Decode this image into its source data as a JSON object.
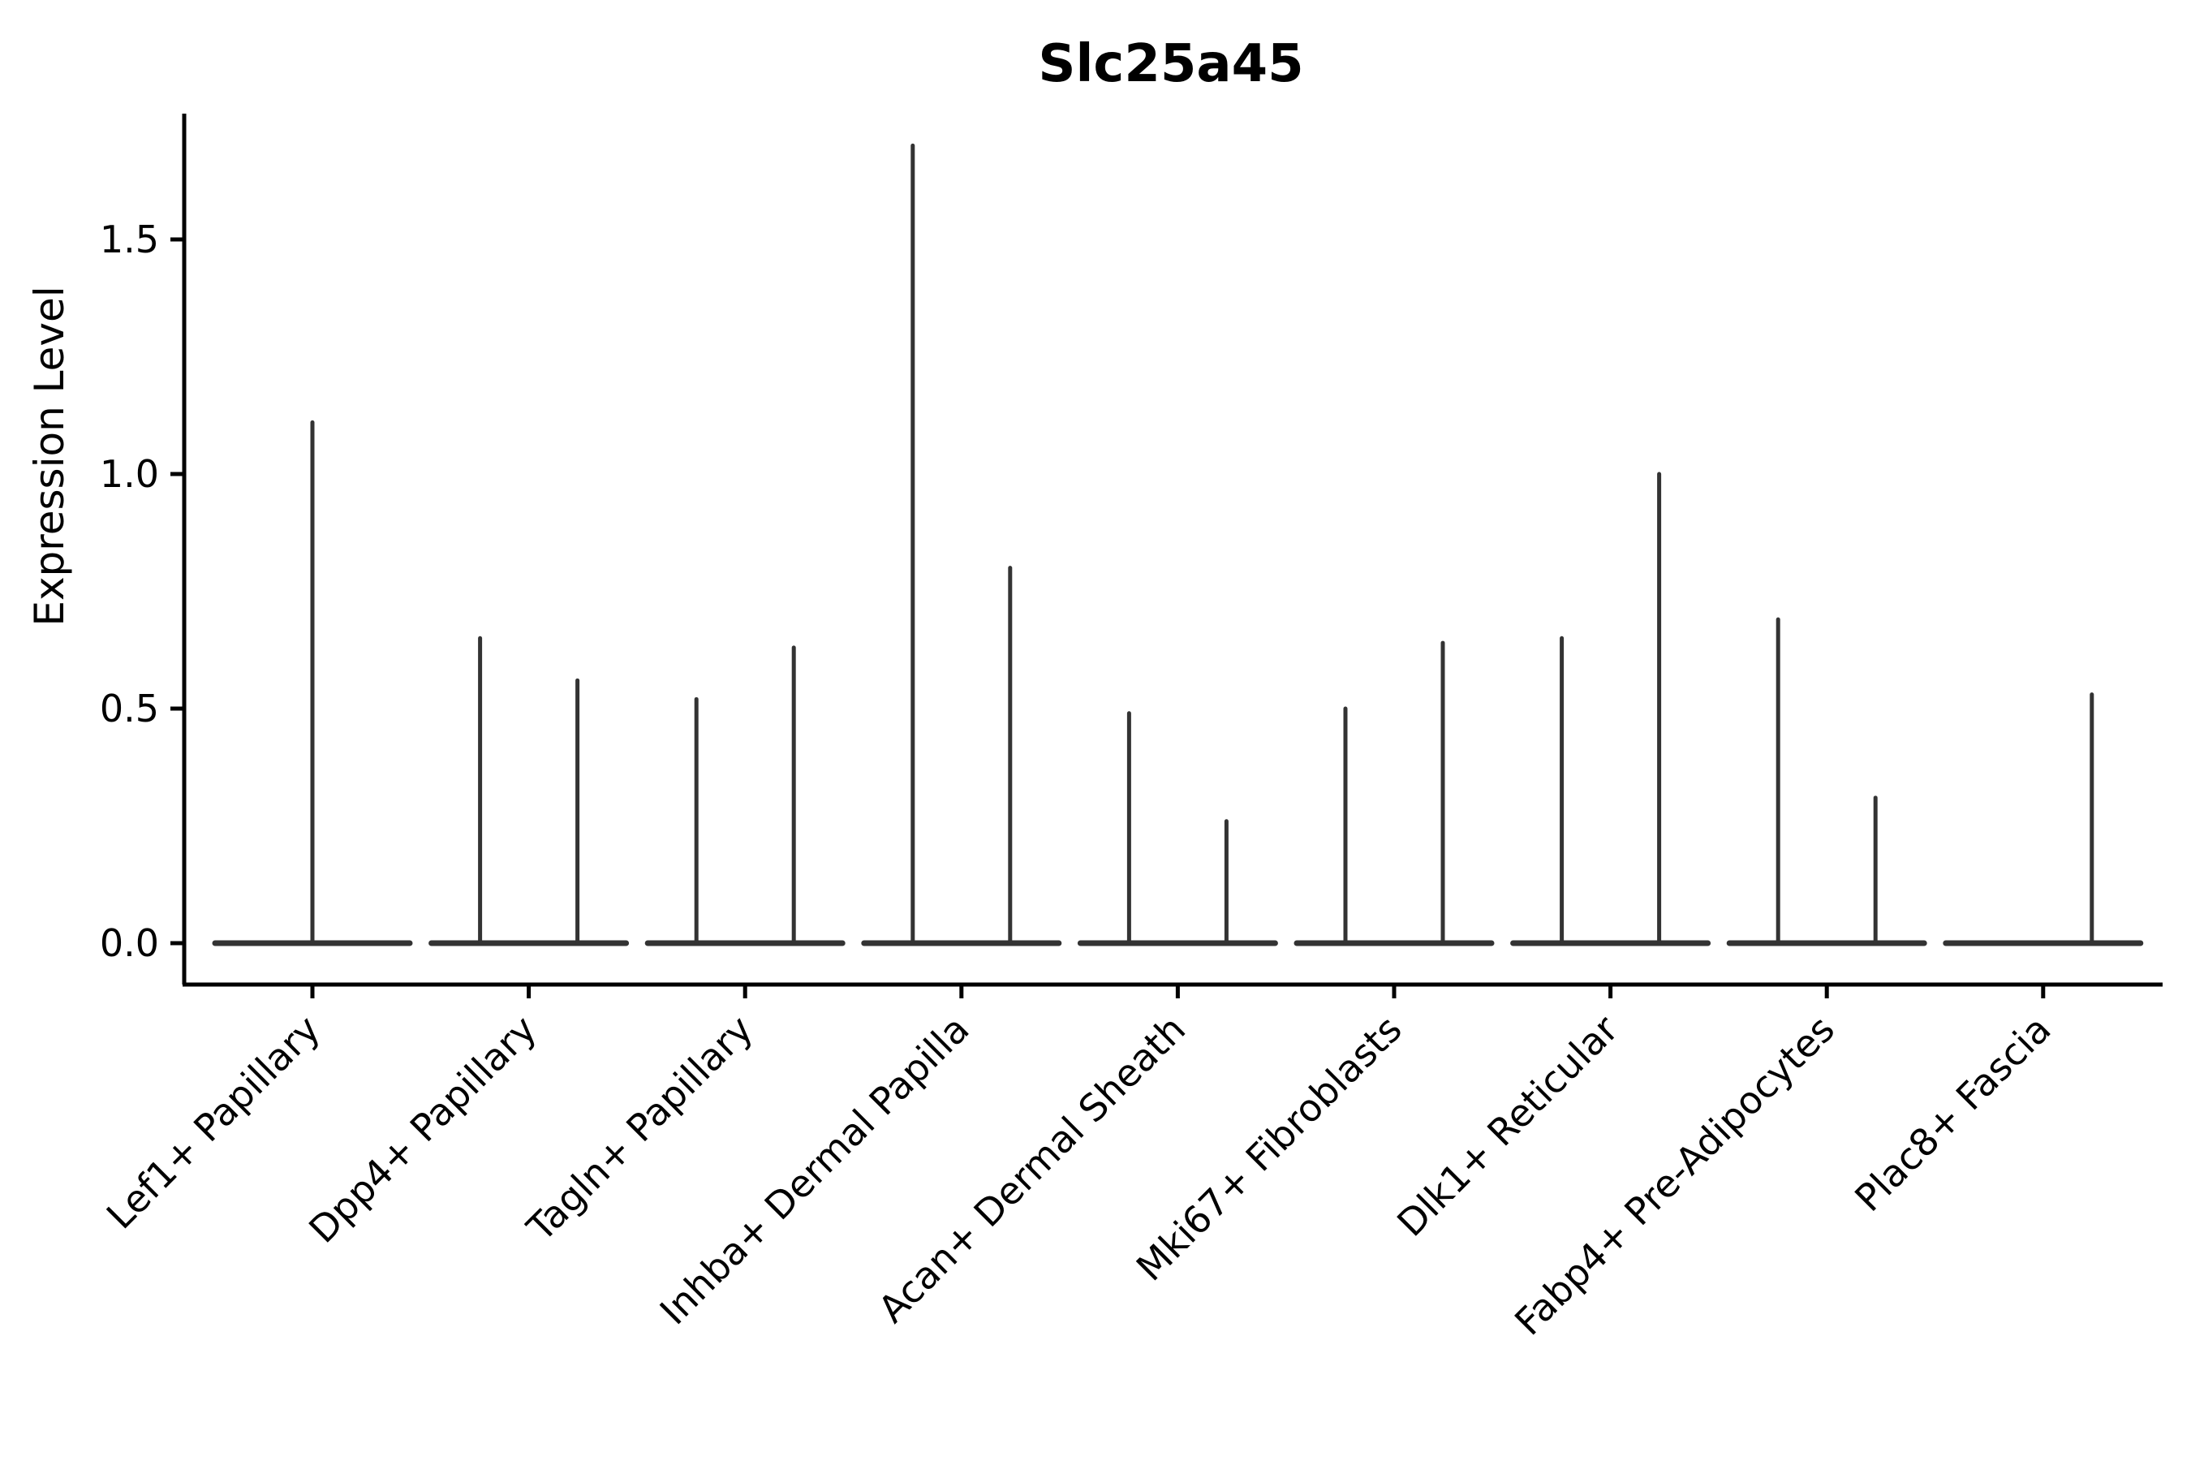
{
  "title": "Slc25a45",
  "y_axis": {
    "label": "Expression Level",
    "ticks": [
      {
        "label": "0.0",
        "value": 0.0
      },
      {
        "label": "0.5",
        "value": 0.5
      },
      {
        "label": "1.0",
        "value": 1.0
      },
      {
        "label": "1.5",
        "value": 1.5
      }
    ]
  },
  "colors": {
    "violin_line": "#333333",
    "spine": "#000000",
    "text": "#000000",
    "background": "#ffffff"
  },
  "chart_data": {
    "type": "violin",
    "title": "Slc25a45",
    "ylabel": "Expression Level",
    "xlabel": "",
    "ylim": [
      -0.09,
      1.78
    ],
    "yticks": [
      0.0,
      0.5,
      1.0,
      1.5
    ],
    "grid": false,
    "legend": "none",
    "description": "Narrow violin plots of gene expression per cluster; nearly all cells at 0 so each violin renders as a flat base line at 0 with thin vertical spikes up to the max expression. Categories 2-8 contain two side-by-side violins (left/right); category 1 a single centered violin; category 9 only the right violin has nonzero max.",
    "baseline_value": 0.0,
    "categories": [
      {
        "label": "Lef1+ Papillary",
        "violins": [
          {
            "position": "center",
            "max": 1.11
          }
        ]
      },
      {
        "label": "Dpp4+ Papillary",
        "violins": [
          {
            "position": "left",
            "max": 0.65
          },
          {
            "position": "right",
            "max": 0.56
          }
        ]
      },
      {
        "label": "Tagln+ Papillary",
        "violins": [
          {
            "position": "left",
            "max": 0.52
          },
          {
            "position": "right",
            "max": 0.63
          }
        ]
      },
      {
        "label": "Inhba+ Dermal Papilla",
        "violins": [
          {
            "position": "left",
            "max": 1.7
          },
          {
            "position": "right",
            "max": 0.8
          }
        ]
      },
      {
        "label": "Acan+ Dermal Sheath",
        "violins": [
          {
            "position": "left",
            "max": 0.49
          },
          {
            "position": "right",
            "max": 0.26
          }
        ]
      },
      {
        "label": "Mki67+ Fibroblasts",
        "violins": [
          {
            "position": "left",
            "max": 0.5
          },
          {
            "position": "right",
            "max": 0.64
          }
        ]
      },
      {
        "label": "Dlk1+ Reticular",
        "violins": [
          {
            "position": "left",
            "max": 0.65
          },
          {
            "position": "right",
            "max": 1.0
          }
        ]
      },
      {
        "label": "Fabp4+ Pre-Adipocytes",
        "violins": [
          {
            "position": "left",
            "max": 0.69
          },
          {
            "position": "right",
            "max": 0.31
          }
        ]
      },
      {
        "label": "Plac8+ Fascia",
        "violins": [
          {
            "position": "right",
            "max": 0.53
          }
        ]
      }
    ]
  }
}
